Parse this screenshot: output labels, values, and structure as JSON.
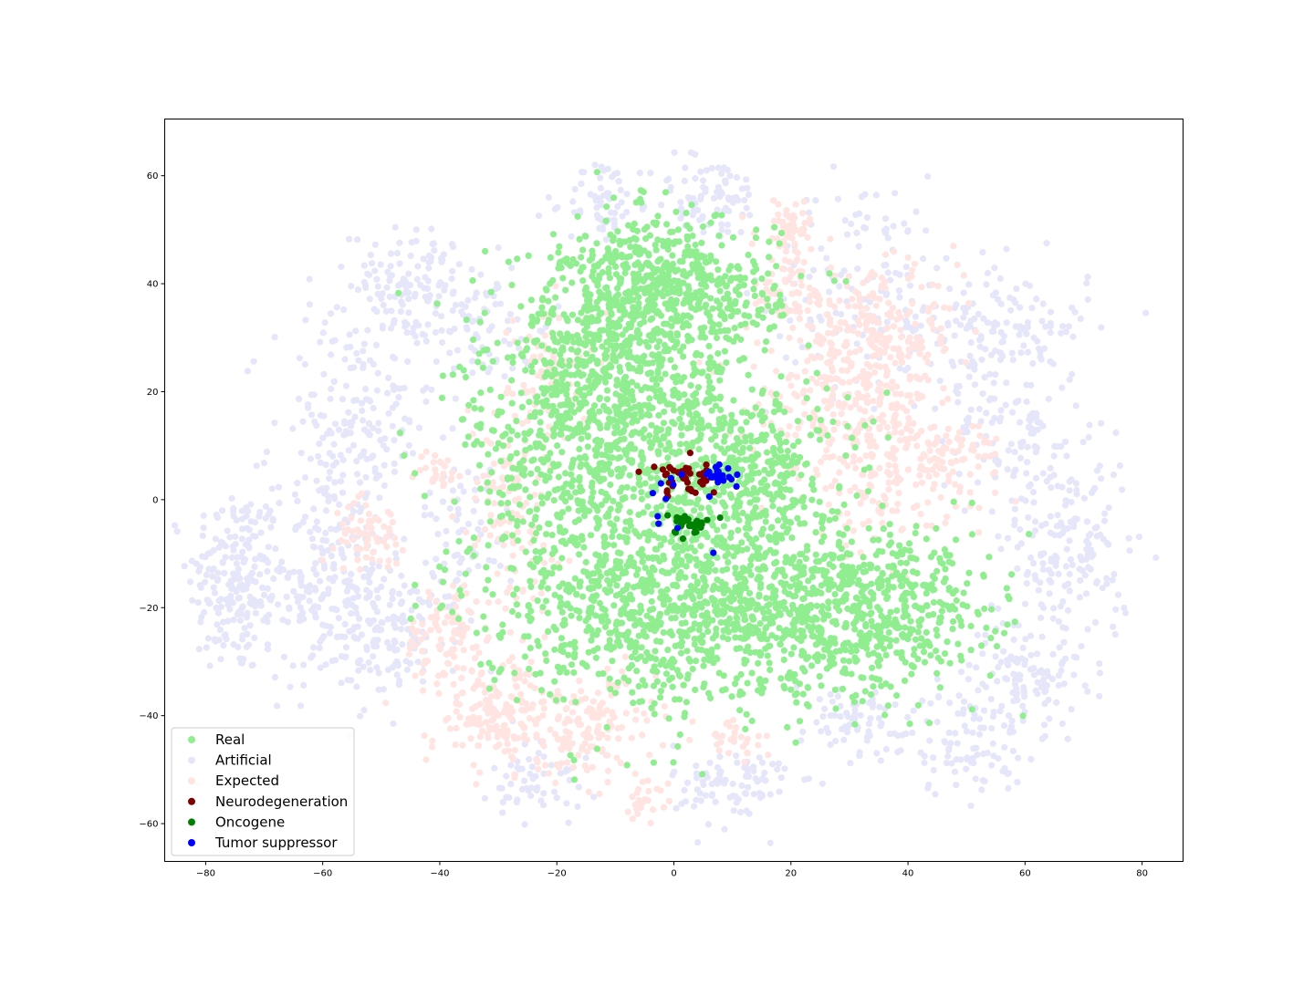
{
  "chart_data": {
    "type": "scatter",
    "title": "",
    "xlabel": "",
    "ylabel": "",
    "xlim": [
      -87,
      87
    ],
    "ylim": [
      -67,
      70.5
    ],
    "grid": false,
    "legend_position": "lower-left",
    "x_ticks": [
      -80,
      -60,
      -40,
      -20,
      0,
      20,
      40,
      60,
      80
    ],
    "y_ticks": [
      -60,
      -40,
      -20,
      0,
      20,
      40,
      60
    ],
    "seed": 12345,
    "series": [
      {
        "name": "Real",
        "color": "#90ee90",
        "clusters": [
          {
            "center": [
              0,
              38
            ],
            "spread": [
              9,
              7
            ],
            "count": 560
          },
          {
            "center": [
              -12,
              30
            ],
            "spread": [
              8,
              10
            ],
            "count": 380
          },
          {
            "center": [
              -18,
              8
            ],
            "spread": [
              9,
              14
            ],
            "count": 480
          },
          {
            "center": [
              -8,
              -20
            ],
            "spread": [
              13,
              9
            ],
            "count": 520
          },
          {
            "center": [
              6,
              -10
            ],
            "spread": [
              13,
              14
            ],
            "count": 520
          },
          {
            "center": [
              22,
              -22
            ],
            "spread": [
              11,
              8
            ],
            "count": 420
          },
          {
            "center": [
              38,
              -20
            ],
            "spread": [
              8,
              7
            ],
            "count": 340
          },
          {
            "center": [
              14,
              5
            ],
            "spread": [
              6,
              8
            ],
            "count": 220
          },
          {
            "center": [
              0,
              15
            ],
            "spread": [
              9,
              8
            ],
            "count": 260
          }
        ]
      },
      {
        "name": "Artificial",
        "color": "#e6e6fa",
        "clusters": [
          {
            "center": [
              -75,
              -15
            ],
            "spread": [
              4,
              9
            ],
            "count": 200
          },
          {
            "center": [
              -60,
              -15
            ],
            "spread": [
              5,
              10
            ],
            "count": 190
          },
          {
            "center": [
              -48,
              -25
            ],
            "spread": [
              6,
              6
            ],
            "count": 140
          },
          {
            "center": [
              -45,
              40
            ],
            "spread": [
              5,
              5
            ],
            "count": 120
          },
          {
            "center": [
              -55,
              12
            ],
            "spread": [
              7,
              12
            ],
            "count": 200
          },
          {
            "center": [
              -33,
              32
            ],
            "spread": [
              6,
              6
            ],
            "count": 80
          },
          {
            "center": [
              -12,
              55
            ],
            "spread": [
              3,
              4
            ],
            "count": 60
          },
          {
            "center": [
              6,
              56
            ],
            "spread": [
              5,
              4
            ],
            "count": 80
          },
          {
            "center": [
              32,
              40
            ],
            "spread": [
              8,
              10
            ],
            "count": 130
          },
          {
            "center": [
              55,
              32
            ],
            "spread": [
              8,
              6
            ],
            "count": 150
          },
          {
            "center": [
              58,
              12
            ],
            "spread": [
              6,
              8
            ],
            "count": 120
          },
          {
            "center": [
              68,
              -10
            ],
            "spread": [
              5,
              9
            ],
            "count": 160
          },
          {
            "center": [
              60,
              -32
            ],
            "spread": [
              5,
              5
            ],
            "count": 110
          },
          {
            "center": [
              50,
              -45
            ],
            "spread": [
              5,
              5
            ],
            "count": 90
          },
          {
            "center": [
              10,
              -53
            ],
            "spread": [
              5,
              4
            ],
            "count": 90
          },
          {
            "center": [
              -23,
              -52
            ],
            "spread": [
              4,
              4
            ],
            "count": 60
          },
          {
            "center": [
              -35,
              -5
            ],
            "spread": [
              4,
              6
            ],
            "count": 60
          },
          {
            "center": [
              30,
              -42
            ],
            "spread": [
              7,
              4
            ],
            "count": 70
          }
        ]
      },
      {
        "name": "Expected",
        "color": "#ffe4e1",
        "clusters": [
          {
            "center": [
              -52,
              -6
            ],
            "spread": [
              3,
              3
            ],
            "count": 60
          },
          {
            "center": [
              -40,
              5
            ],
            "spread": [
              2,
              2
            ],
            "count": 25
          },
          {
            "center": [
              -38,
              -25
            ],
            "spread": [
              4,
              5
            ],
            "count": 90
          },
          {
            "center": [
              -30,
              -40
            ],
            "spread": [
              6,
              5
            ],
            "count": 160
          },
          {
            "center": [
              -15,
              -42
            ],
            "spread": [
              6,
              5
            ],
            "count": 140
          },
          {
            "center": [
              -5,
              -55
            ],
            "spread": [
              2,
              2
            ],
            "count": 25
          },
          {
            "center": [
              20,
              50
            ],
            "spread": [
              3,
              3
            ],
            "count": 60
          },
          {
            "center": [
              20,
              38
            ],
            "spread": [
              4,
              3
            ],
            "count": 60
          },
          {
            "center": [
              35,
              30
            ],
            "spread": [
              7,
              6
            ],
            "count": 220
          },
          {
            "center": [
              28,
              18
            ],
            "spread": [
              8,
              6
            ],
            "count": 180
          },
          {
            "center": [
              35,
              5
            ],
            "spread": [
              6,
              7
            ],
            "count": 160
          },
          {
            "center": [
              48,
              8
            ],
            "spread": [
              4,
              4
            ],
            "count": 70
          },
          {
            "center": [
              -28,
              0
            ],
            "spread": [
              4,
              10
            ],
            "count": 120
          },
          {
            "center": [
              -20,
              25
            ],
            "spread": [
              4,
              6
            ],
            "count": 80
          },
          {
            "center": [
              10,
              -45
            ],
            "spread": [
              3,
              2
            ],
            "count": 30
          }
        ]
      },
      {
        "name": "Neurodegeneration",
        "color": "#800000",
        "clusters": [
          {
            "center": [
              2,
              4.5
            ],
            "spread": [
              3,
              1.8
            ],
            "count": 45
          }
        ]
      },
      {
        "name": "Oncogene",
        "color": "#008000",
        "clusters": [
          {
            "center": [
              3,
              -4.5
            ],
            "spread": [
              2.5,
              1.2
            ],
            "count": 30
          }
        ]
      },
      {
        "name": "Tumor suppressor",
        "color": "#0000ff",
        "clusters": [
          {
            "center": [
              8,
              4.3
            ],
            "spread": [
              1.3,
              0.8
            ],
            "count": 22
          },
          {
            "center": [
              2,
              1.5
            ],
            "spread": [
              4,
              4
            ],
            "count": 12
          }
        ]
      }
    ]
  }
}
